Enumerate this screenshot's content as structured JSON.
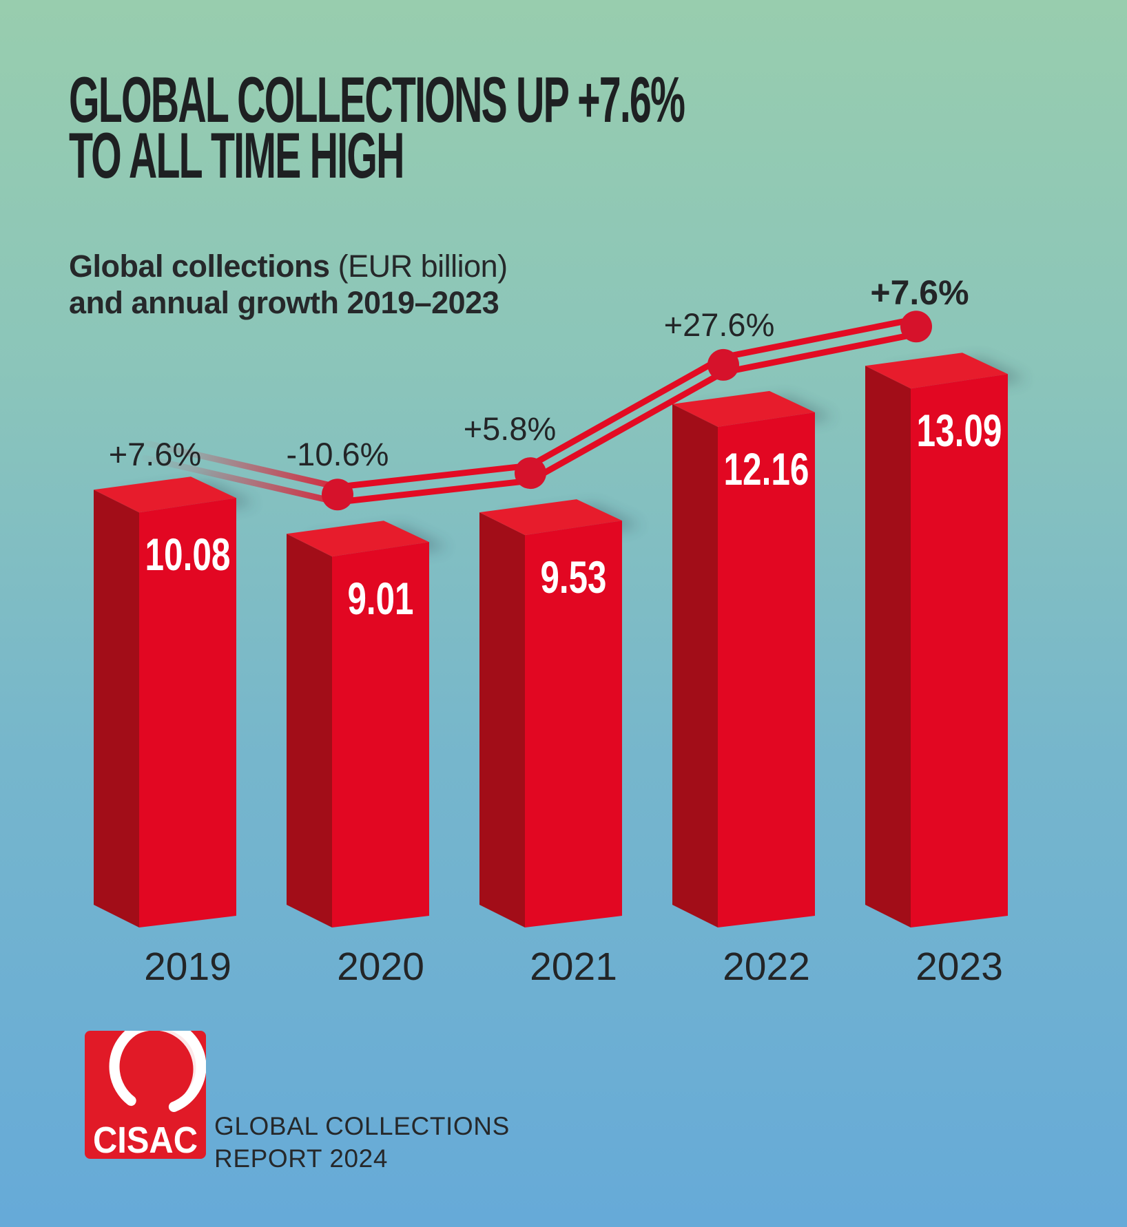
{
  "title": {
    "line1": "GLOBAL COLLECTIONS UP +7.6%",
    "line2": "TO ALL TIME HIGH"
  },
  "subtitle": {
    "bold": "Global collections",
    "rest": " (EUR billion)",
    "line2": "and annual growth 2019–2023"
  },
  "chart_data": {
    "type": "bar",
    "title": "Global collections (EUR billion) and annual growth 2019–2023",
    "categories": [
      "2019",
      "2020",
      "2021",
      "2022",
      "2023"
    ],
    "series": [
      {
        "name": "Global collections (EUR billion)",
        "type": "bar",
        "values": [
          10.08,
          9.01,
          9.53,
          12.16,
          13.09
        ],
        "labels": [
          "10.08",
          "9.01",
          "9.53",
          "12.16",
          "13.09"
        ]
      },
      {
        "name": "Annual growth",
        "type": "line",
        "values": [
          7.6,
          -10.6,
          5.8,
          27.6,
          7.6
        ],
        "labels": [
          "+7.6%",
          "-10.6%",
          "+5.8%",
          "+27.6%",
          "+7.6%"
        ]
      }
    ],
    "ylim": [
      0,
      13.09
    ],
    "grid": false,
    "legend": false,
    "value_labels_on_bars": true,
    "growth_line_first_segment_faded": true
  },
  "colors": {
    "background_top": "#98cdae",
    "background_bottom": "#66aad8",
    "bar_front": "#e20722",
    "bar_top": "#e71c2c",
    "bar_side": "#a20d18",
    "line": "#e30b23",
    "dot": "#d6122b",
    "text_dark": "#232527",
    "value_text": "#ffffff",
    "logo_red": "#e11a27"
  },
  "footer": {
    "logo_text": "CISAC",
    "line1": "GLOBAL COLLECTIONS",
    "line2": "REPORT 2024"
  }
}
